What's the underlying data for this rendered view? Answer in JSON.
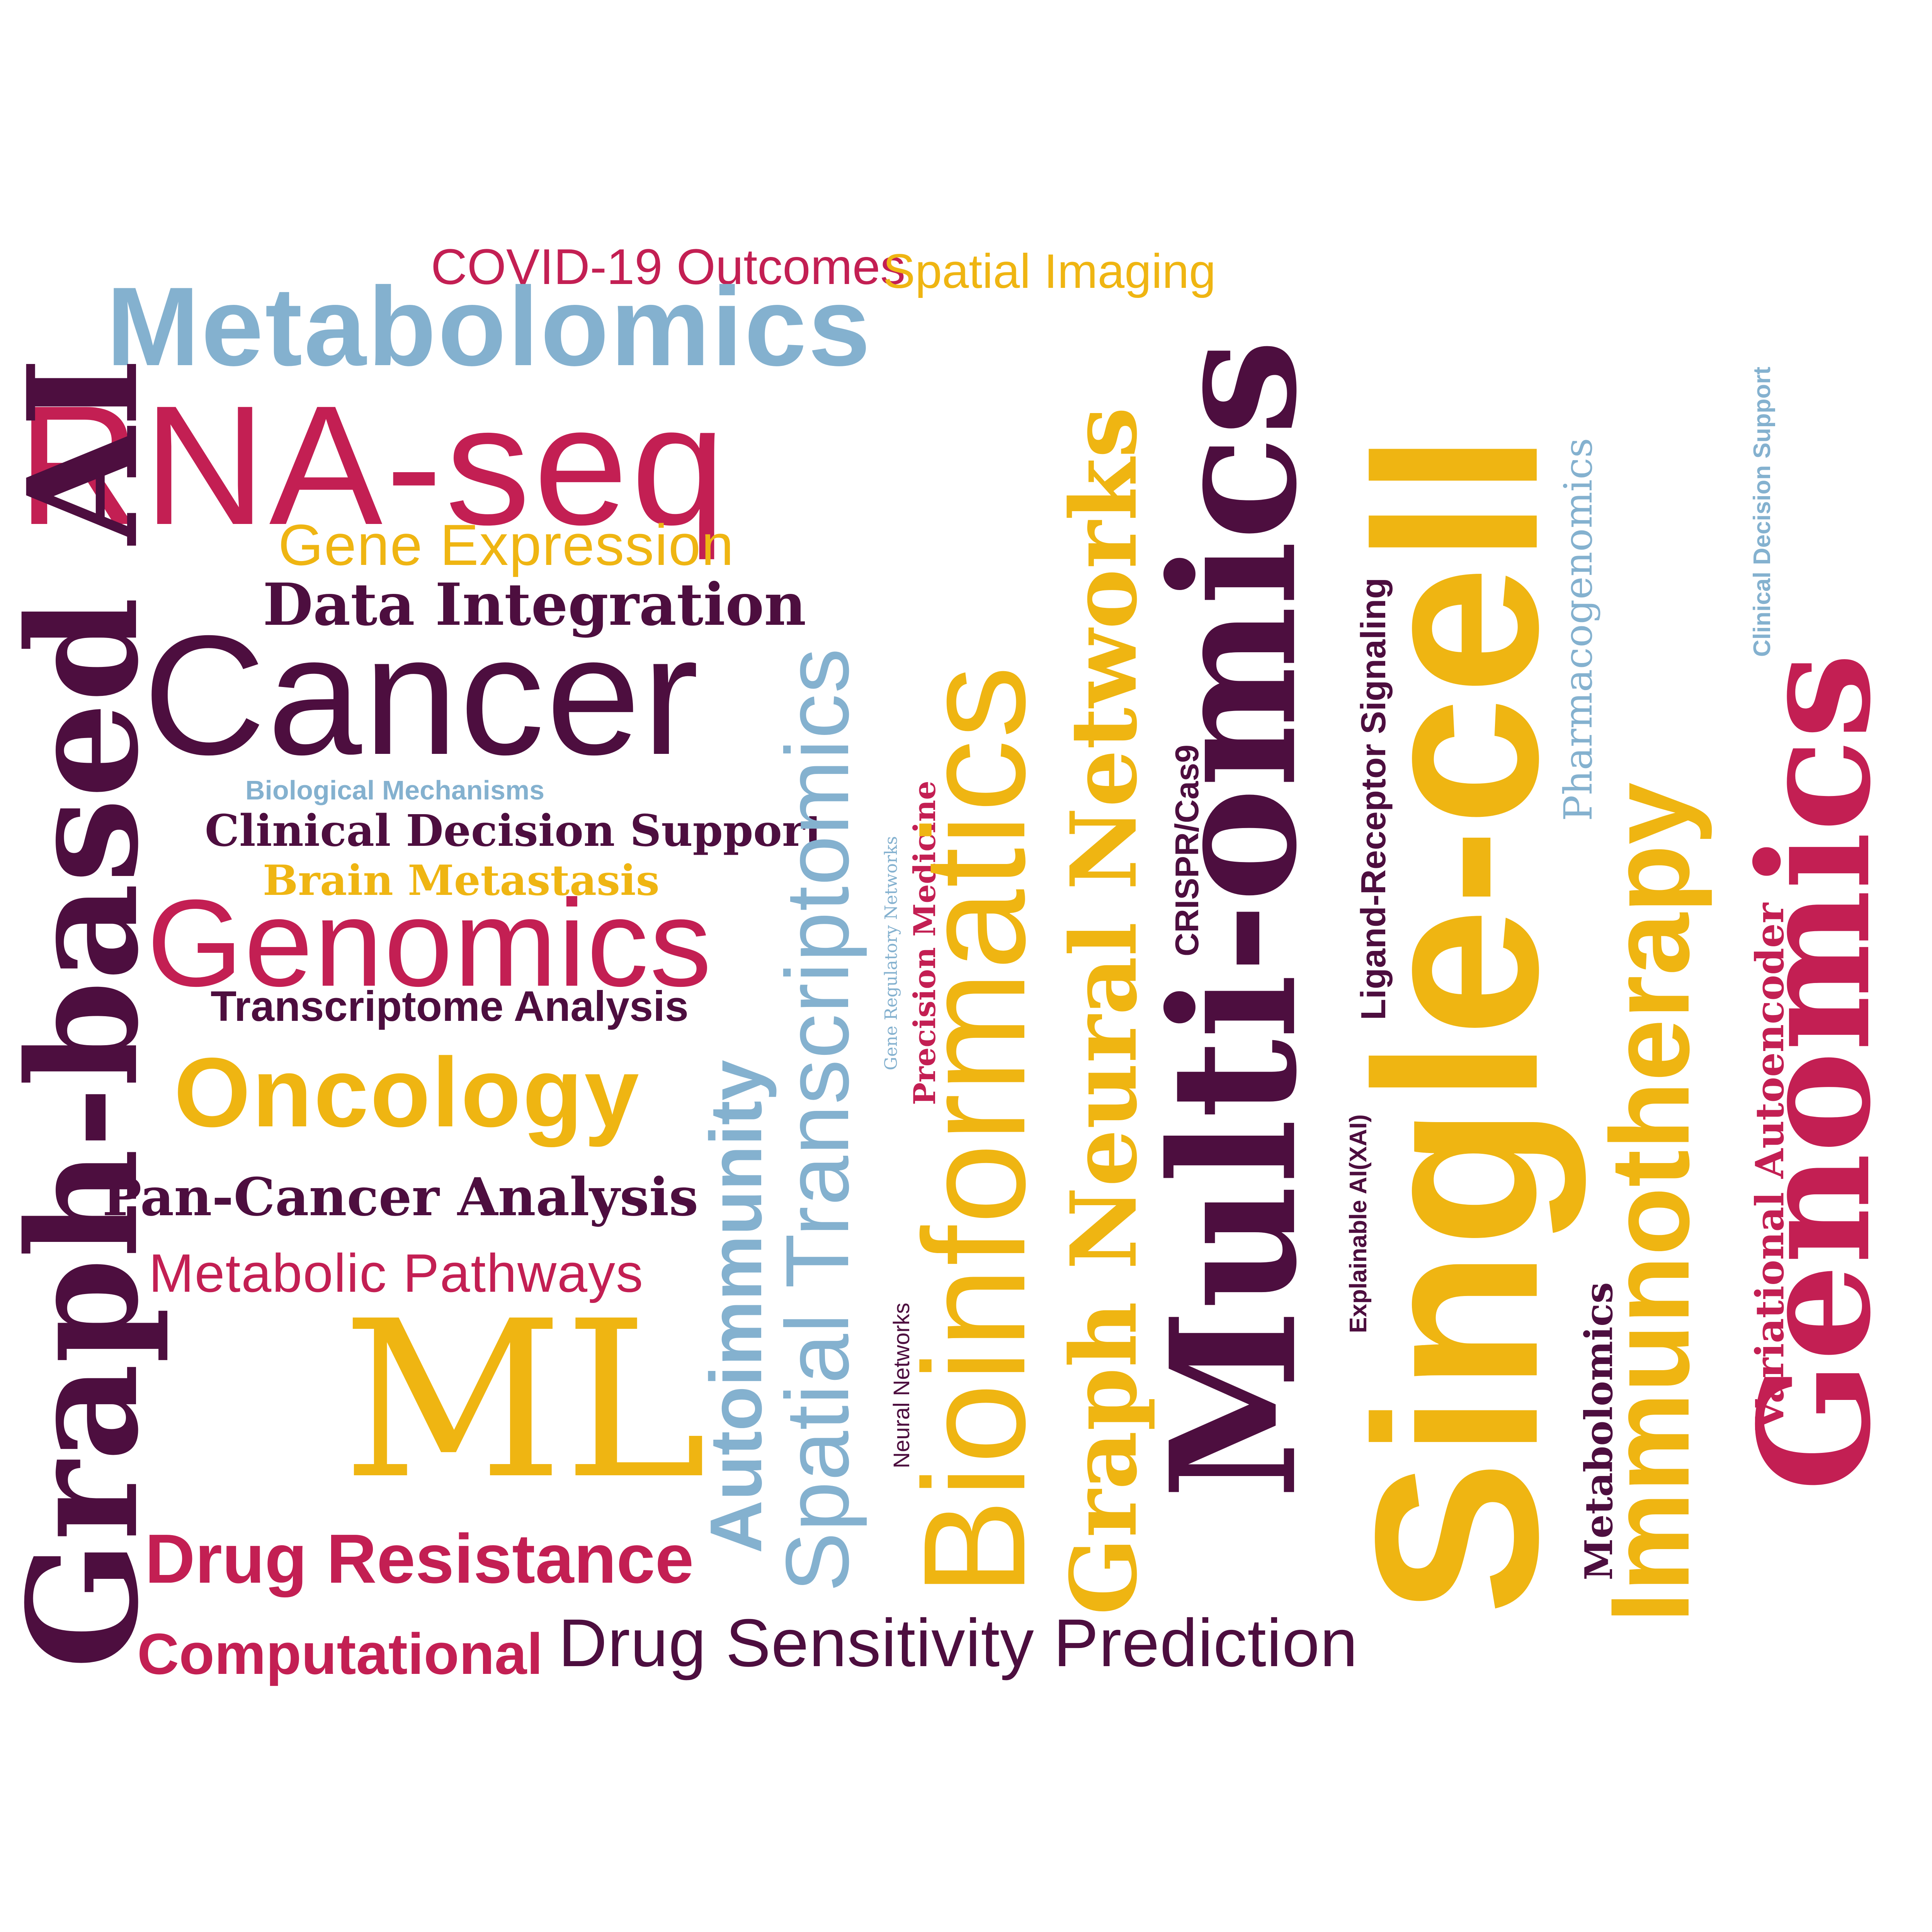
{
  "colors": {
    "wine": "#4d0e3f",
    "crimson": "#c31f53",
    "gold": "#efb512",
    "blue": "#84b1cf",
    "background": "#ffffff"
  },
  "words": {
    "covid_outcomes": "COVID-19 Outcomes",
    "spatial_imaging": "Spatial Imaging",
    "metabolomics_top": "Metabolomics",
    "rna_seq": "RNA-seq",
    "gene_expression": "Gene Expression",
    "data_integration": "Data Integration",
    "cancer": "Cancer",
    "biological_mechanisms": "Biological Mechanisms",
    "clinical_decision_support_h": "Clinical Decision Support",
    "brain_metastasis": "Brain Metastasis",
    "genomics_h": "Genomics",
    "transcriptome_analysis": "Transcriptome Analysis",
    "oncology": "Oncology",
    "pan_cancer_analysis": "Pan-Cancer Analysis",
    "metabolic_pathways": "Metabolic Pathways",
    "ml": "ML",
    "drug_resistance": "Drug Resistance",
    "computational": "Computational",
    "drug_sensitivity_prediction": "Drug Sensitivity Prediction",
    "graph_based_ai": "Graph-based AI",
    "autoimmunity": "Autoimmunity",
    "spatial_transcriptomics": "Spatial Transcriptomics",
    "gene_regulatory_networks": "Gene Regulatory Networks",
    "precision_medicine": "Precision Medicine",
    "neural_networks": "Neural Networks",
    "bioinformatics": "Bioinformatics",
    "graph_neural_networks": "Graph Neural Networks",
    "crispr_cas9": "CRISPR/Cas9",
    "multi_omics": "Multi-omics",
    "explainable_ai": "Explainable AI(XAI)",
    "ligand_receptor_signaling": "Ligand-Receptor Signaling",
    "single_cell": "Single-cell",
    "metabolomics_v": "Metabolomics",
    "pharmacogenomics": "Pharmacogenomics",
    "immunotherapy": "Immunotherapy",
    "variational_autoencoder": "Variational Autoencoder",
    "clinical_decision_support_v": "Clinical Decision Support",
    "genomics_v": "Genomics"
  }
}
